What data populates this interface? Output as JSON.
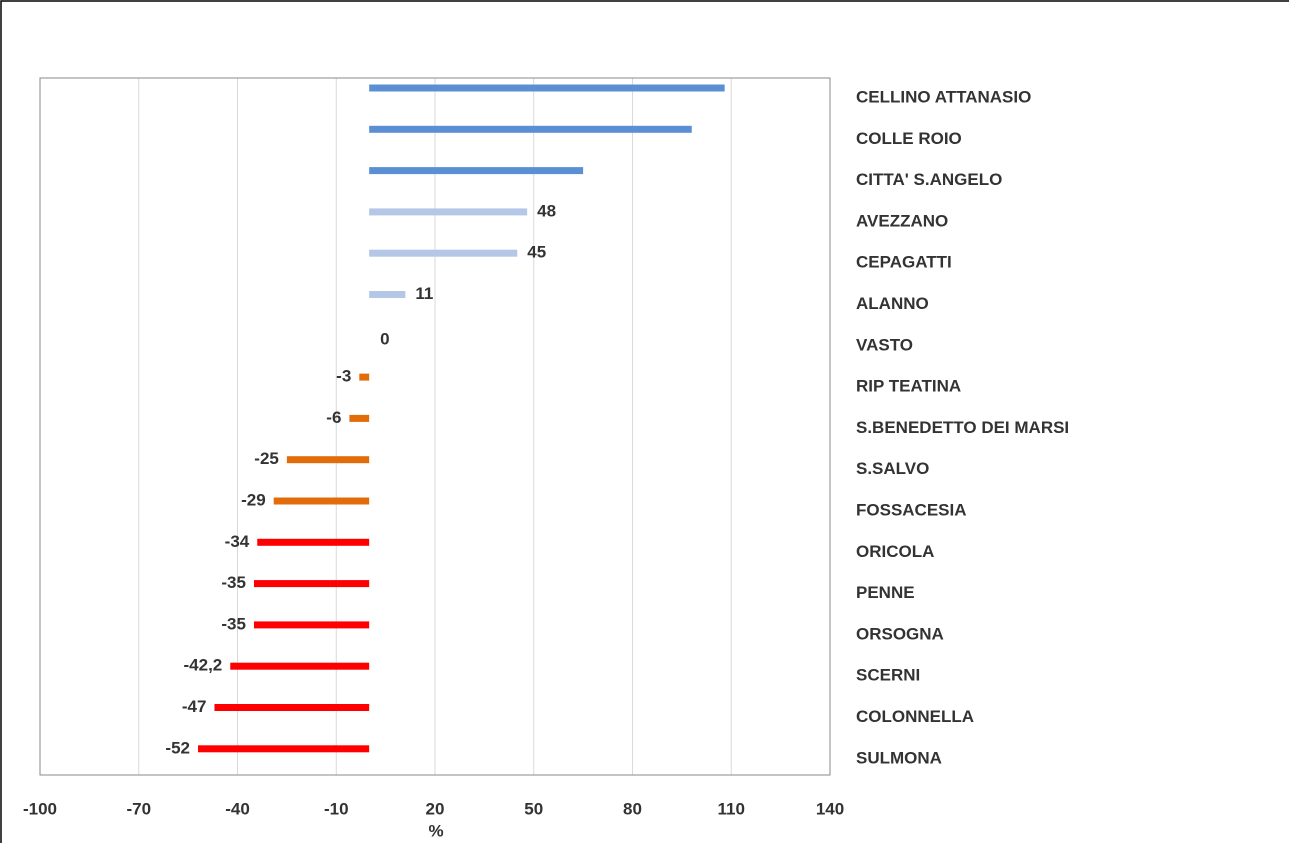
{
  "chart_data": {
    "type": "hbar",
    "x_label": "%",
    "categories": [
      "CELLINO ATTANASIO",
      "COLLE ROIO",
      "CITTA' S.ANGELO",
      "AVEZZANO",
      "CEPAGATTI",
      "ALANNO",
      "VASTO",
      "RIP TEATINA",
      "S.BENEDETTO DEI MARSI",
      "S.SALVO",
      "FOSSACESIA",
      "ORICOLA",
      "PENNE",
      "ORSOGNA",
      "SCERNI",
      "COLONNELLA",
      "SULMONA"
    ],
    "values": [
      108,
      98,
      65,
      48,
      45,
      11,
      0,
      -3,
      -6,
      -25,
      -29,
      -34,
      -35,
      -35,
      -42.2,
      -47,
      -52
    ],
    "value_labels": [
      null,
      null,
      null,
      "48",
      "45",
      "11",
      "0",
      "-3",
      "-6",
      "-25",
      "-29",
      "-34",
      "-35",
      "-35",
      "-42,2",
      "-47",
      "-52"
    ],
    "colors": [
      "#5b8fd4",
      "#5b8fd4",
      "#5b8fd4",
      "#b4c7e7",
      "#b4c7e7",
      "#b4c7e7",
      "#b4c7e7",
      "#e36c0a",
      "#e36c0a",
      "#e36c0a",
      "#e36c0a",
      "#ff0000",
      "#ff0000",
      "#ff0000",
      "#ff0000",
      "#ff0000",
      "#ff0000"
    ],
    "xlim": [
      -100,
      140
    ],
    "xticks": [
      -100,
      -70,
      -40,
      -10,
      20,
      50,
      80,
      110,
      140
    ],
    "grid": true
  }
}
